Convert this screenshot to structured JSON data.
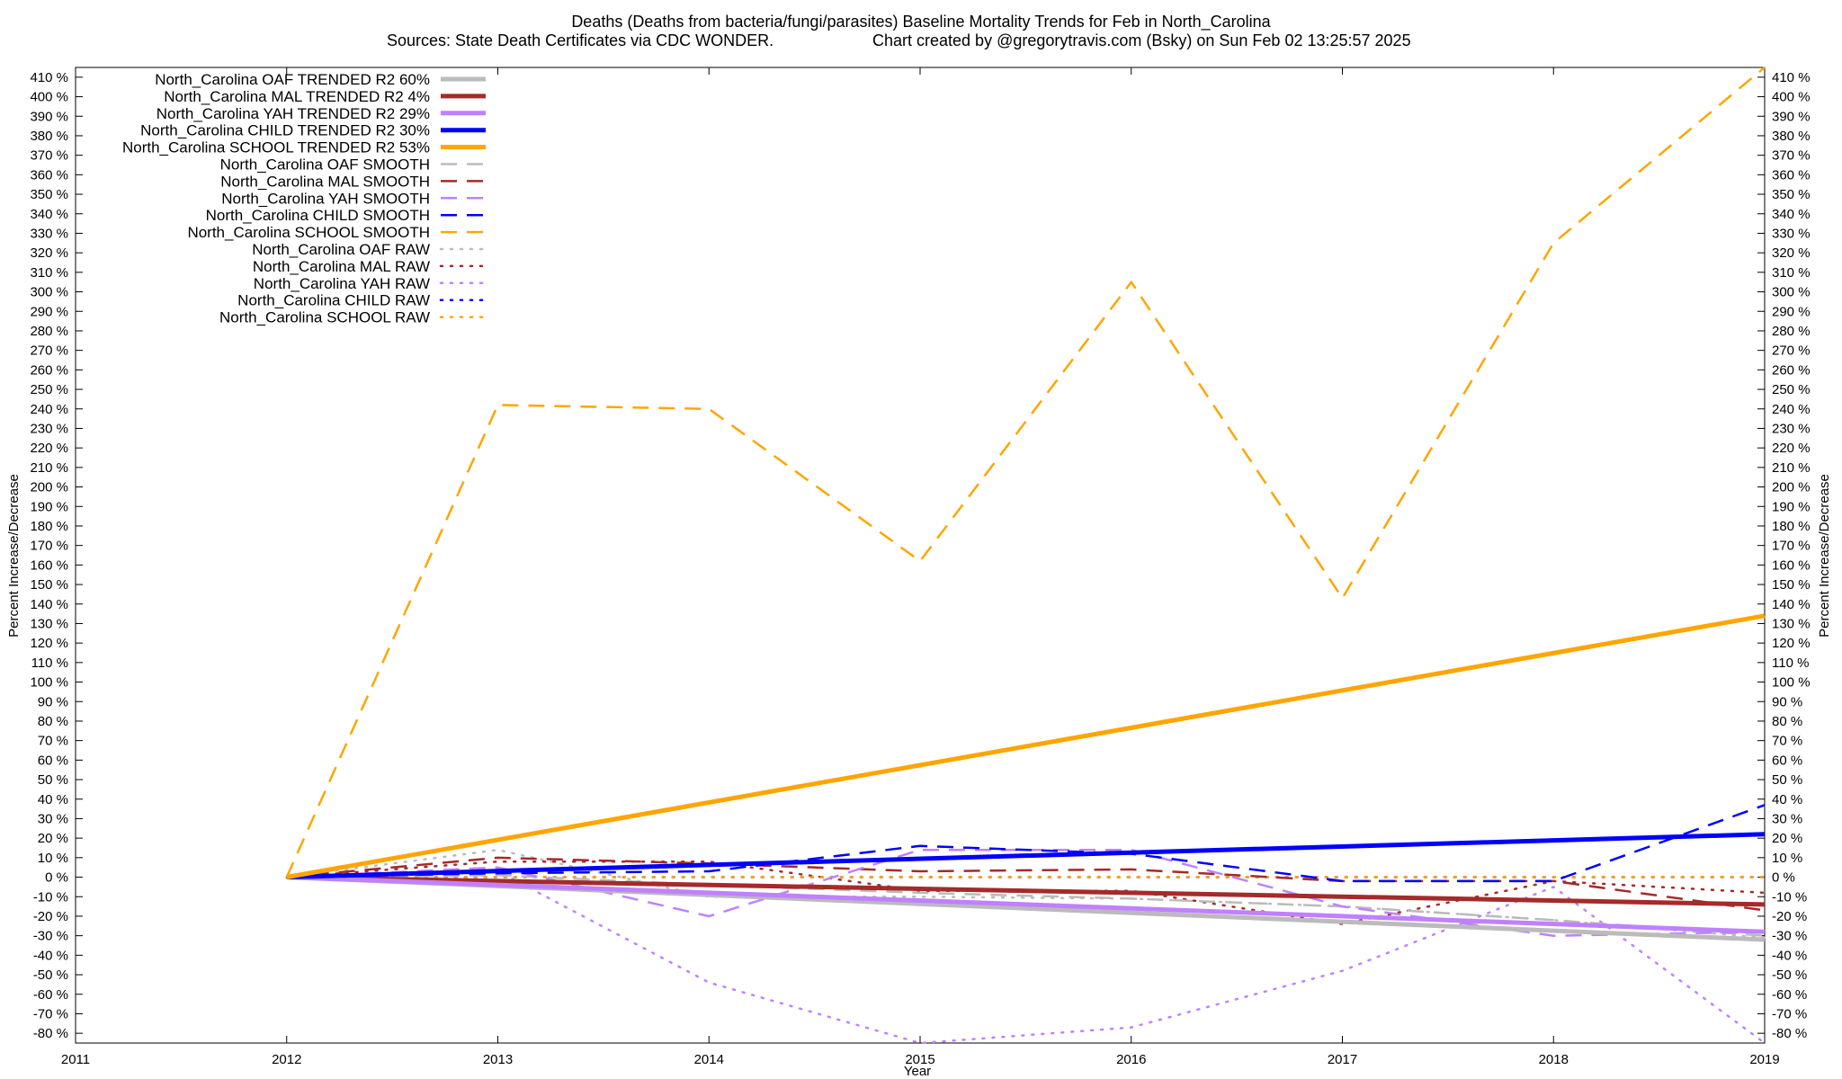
{
  "chart_data": {
    "type": "line",
    "title_line1": "Deaths (Deaths from bacteria/fungi/parasites)  Baseline Mortality Trends for Feb in North_Carolina",
    "title_line2_left": "Sources: State Death Certificates via CDC WONDER.",
    "title_line2_right": "Chart created by @gregorytravis.com (Bsky) on Sun Feb 02 13:25:57 2025",
    "xlabel": "Year",
    "ylabel_left": "Percent Increase/Decrease",
    "ylabel_right": "Percent Increase/Decrease",
    "xlim": [
      2011,
      2019
    ],
    "ylim": [
      -85,
      415
    ],
    "x_ticks": [
      "2011",
      "2012",
      "2013",
      "2014",
      "2015",
      "2016",
      "2017",
      "2018",
      "2019"
    ],
    "y_ticks": [
      "-80 %",
      "-70 %",
      "-60 %",
      "-50 %",
      "-40 %",
      "-30 %",
      "-20 %",
      "-10 %",
      "0 %",
      "10 %",
      "20 %",
      "30 %",
      "40 %",
      "50 %",
      "60 %",
      "70 %",
      "80 %",
      "90 %",
      "100 %",
      "110 %",
      "120 %",
      "130 %",
      "140 %",
      "150 %",
      "160 %",
      "170 %",
      "180 %",
      "190 %",
      "200 %",
      "210 %",
      "220 %",
      "230 %",
      "240 %",
      "250 %",
      "260 %",
      "270 %",
      "280 %",
      "290 %",
      "300 %",
      "310 %",
      "320 %",
      "330 %",
      "340 %",
      "350 %",
      "360 %",
      "370 %",
      "380 %",
      "390 %",
      "400 %",
      "410 %"
    ],
    "legend_position": "top-left",
    "series": [
      {
        "name": "North_Carolina OAF TRENDED R2  60%",
        "style": "solid",
        "color": "#bbbbbb",
        "x": [
          2012,
          2019
        ],
        "y": [
          0,
          -32
        ]
      },
      {
        "name": "North_Carolina MAL TRENDED R2   4%",
        "style": "solid",
        "color": "#a52a2a",
        "x": [
          2012,
          2019
        ],
        "y": [
          0,
          -14
        ]
      },
      {
        "name": "North_Carolina YAH TRENDED R2  29%",
        "style": "solid",
        "color": "#c080ff",
        "x": [
          2012,
          2019
        ],
        "y": [
          0,
          -28
        ]
      },
      {
        "name": "North_Carolina CHILD TRENDED R2  30%",
        "style": "solid",
        "color": "#0000ff",
        "x": [
          2012,
          2019
        ],
        "y": [
          0,
          22
        ]
      },
      {
        "name": "North_Carolina SCHOOL TRENDED R2  53%",
        "style": "solid",
        "color": "#ffa500",
        "x": [
          2012,
          2019
        ],
        "y": [
          0,
          134
        ]
      },
      {
        "name": "North_Carolina OAF SMOOTH",
        "style": "dashed",
        "color": "#bbbbbb",
        "x": [
          2012,
          2013,
          2014,
          2015,
          2016,
          2017,
          2018,
          2019
        ],
        "y": [
          0,
          1,
          -4,
          -8,
          -11,
          -15,
          -22,
          -30
        ]
      },
      {
        "name": "North_Carolina MAL SMOOTH",
        "style": "dashed",
        "color": "#a52a2a",
        "x": [
          2012,
          2013,
          2014,
          2015,
          2016,
          2017,
          2018,
          2019
        ],
        "y": [
          0,
          10,
          7,
          3,
          4,
          -2,
          -2,
          -17
        ]
      },
      {
        "name": "North_Carolina YAH SMOOTH",
        "style": "dashed",
        "color": "#c080ff",
        "x": [
          2012,
          2013,
          2014,
          2015,
          2016,
          2017,
          2018,
          2019
        ],
        "y": [
          0,
          5,
          -20,
          14,
          14,
          -15,
          -30,
          -28
        ]
      },
      {
        "name": "North_Carolina CHILD SMOOTH",
        "style": "dashed",
        "color": "#0000ff",
        "x": [
          2012,
          2013,
          2014,
          2015,
          2016,
          2017,
          2018,
          2019
        ],
        "y": [
          0,
          2,
          3,
          16,
          12,
          -2,
          -2,
          37
        ]
      },
      {
        "name": "North_Carolina SCHOOL SMOOTH",
        "style": "dashed",
        "color": "#ffa500",
        "x": [
          2012,
          2013,
          2014,
          2015,
          2016,
          2017,
          2018,
          2019
        ],
        "y": [
          0,
          242,
          240,
          162,
          305,
          143,
          325,
          415
        ]
      },
      {
        "name": "North_Carolina OAF RAW",
        "style": "dotted",
        "color": "#bbbbbb",
        "x": [
          2012,
          2013,
          2014,
          2015,
          2016,
          2017,
          2018,
          2019
        ],
        "y": [
          0,
          14,
          -10,
          -10,
          -11,
          -15,
          -22,
          -31
        ]
      },
      {
        "name": "North_Carolina MAL RAW",
        "style": "dotted",
        "color": "#a52a2a",
        "x": [
          2012,
          2013,
          2014,
          2015,
          2016,
          2017,
          2018,
          2019
        ],
        "y": [
          0,
          8,
          8,
          -7,
          -7,
          -24,
          -2,
          -8
        ]
      },
      {
        "name": "North_Carolina YAH RAW",
        "style": "dotted",
        "color": "#c080ff",
        "x": [
          2012,
          2013,
          2014,
          2015,
          2016,
          2017,
          2018,
          2019
        ],
        "y": [
          0,
          3,
          -54,
          -85,
          -77,
          -48,
          -5,
          -85
        ]
      },
      {
        "name": "North_Carolina CHILD RAW",
        "style": "dotted",
        "color": "#0000ff",
        "x": [
          2012,
          2013,
          2014,
          2015,
          2016,
          2017,
          2018,
          2019
        ],
        "y": [
          0,
          0,
          0,
          0,
          0,
          0,
          0,
          0
        ]
      },
      {
        "name": "North_Carolina SCHOOL RAW",
        "style": "dotted",
        "color": "#ffa500",
        "x": [
          2012,
          2013,
          2014,
          2015,
          2016,
          2017,
          2018,
          2019
        ],
        "y": [
          0,
          0,
          0,
          0,
          0,
          0,
          0,
          0
        ]
      }
    ]
  }
}
